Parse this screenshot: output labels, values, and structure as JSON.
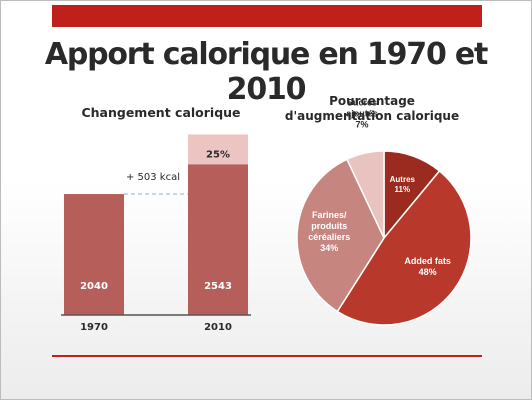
{
  "slide": {
    "title": "Apport calorique en 1970 et 2010",
    "colors": {
      "accent": "#c0201a"
    }
  },
  "chart_data": [
    {
      "type": "bar",
      "title": "Changement calorique",
      "categories": [
        "1970",
        "2010"
      ],
      "values": [
        2040,
        2543
      ],
      "value_labels": [
        "2040",
        "2543"
      ],
      "increment": {
        "label": "+ 503 kcal",
        "value": 503,
        "top_label": "25%"
      },
      "ylim": [
        0,
        2800
      ],
      "colors": {
        "bar": "#b55e5a",
        "increment": "#ecc5c3",
        "dashed": "#8fb3c9"
      }
    },
    {
      "type": "pie",
      "title_lines": [
        "Pourcentage",
        "d'augmentation calorique"
      ],
      "slices": [
        {
          "name": "Autres",
          "value": 11,
          "label": "11%",
          "color": "#9b2a1f"
        },
        {
          "name": "Added fats",
          "value": 48,
          "label": "48%",
          "color": "#b8392b"
        },
        {
          "name_lines": [
            "Farines/",
            "produits",
            "céréaliers"
          ],
          "value": 34,
          "label": "34%",
          "color": "#c78580"
        },
        {
          "name_lines": [
            "Sucres",
            "ajoutés"
          ],
          "value": 7,
          "label": "7%",
          "color": "#e8c3bf"
        }
      ]
    }
  ]
}
